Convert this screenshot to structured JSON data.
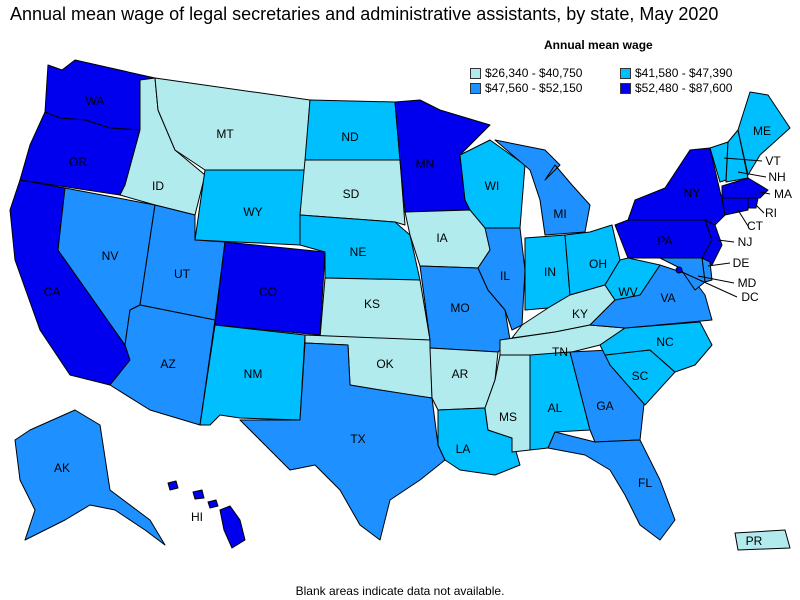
{
  "title": "Annual mean wage of legal secretaries and administrative assistants, by state, May 2020",
  "legend": {
    "title": "Annual mean wage",
    "items": [
      {
        "label": "$26,340 - $40,750",
        "color": "#b2ebee"
      },
      {
        "label": "$41,580 - $47,390",
        "color": "#00bfff"
      },
      {
        "label": "$47,560 - $52,150",
        "color": "#1e90ff"
      },
      {
        "label": "$52,480 - $87,600",
        "color": "#0000ee"
      }
    ]
  },
  "footnote": "Blank areas indicate data not available.",
  "states": [
    {
      "code": "WA",
      "label": "WA",
      "tier": 3
    },
    {
      "code": "OR",
      "label": "OR",
      "tier": 3
    },
    {
      "code": "CA",
      "label": "CA",
      "tier": 3
    },
    {
      "code": "NV",
      "label": "NV",
      "tier": 2
    },
    {
      "code": "ID",
      "label": "ID",
      "tier": 0
    },
    {
      "code": "MT",
      "label": "MT",
      "tier": 0
    },
    {
      "code": "WY",
      "label": "WY",
      "tier": 1
    },
    {
      "code": "UT",
      "label": "UT",
      "tier": 2
    },
    {
      "code": "AZ",
      "label": "AZ",
      "tier": 2
    },
    {
      "code": "CO",
      "label": "CO",
      "tier": 3
    },
    {
      "code": "NM",
      "label": "NM",
      "tier": 1
    },
    {
      "code": "ND",
      "label": "ND",
      "tier": 1
    },
    {
      "code": "SD",
      "label": "SD",
      "tier": 0
    },
    {
      "code": "NE",
      "label": "NE",
      "tier": 1
    },
    {
      "code": "KS",
      "label": "KS",
      "tier": 0
    },
    {
      "code": "OK",
      "label": "OK",
      "tier": 0
    },
    {
      "code": "TX",
      "label": "TX",
      "tier": 2
    },
    {
      "code": "MN",
      "label": "MN",
      "tier": 3
    },
    {
      "code": "IA",
      "label": "IA",
      "tier": 0
    },
    {
      "code": "MO",
      "label": "MO",
      "tier": 2
    },
    {
      "code": "AR",
      "label": "AR",
      "tier": 0
    },
    {
      "code": "LA",
      "label": "LA",
      "tier": 1
    },
    {
      "code": "WI",
      "label": "WI",
      "tier": 1
    },
    {
      "code": "IL",
      "label": "IL",
      "tier": 2
    },
    {
      "code": "MS",
      "label": "MS",
      "tier": 0
    },
    {
      "code": "MI",
      "label": "MI",
      "tier": 2
    },
    {
      "code": "IN",
      "label": "IN",
      "tier": 1
    },
    {
      "code": "OH",
      "label": "OH",
      "tier": 1
    },
    {
      "code": "KY",
      "label": "KY",
      "tier": 0
    },
    {
      "code": "TN",
      "label": "TN",
      "tier": 0
    },
    {
      "code": "AL",
      "label": "AL",
      "tier": 1
    },
    {
      "code": "GA",
      "label": "GA",
      "tier": 2
    },
    {
      "code": "FL",
      "label": "FL",
      "tier": 2
    },
    {
      "code": "SC",
      "label": "SC",
      "tier": 1
    },
    {
      "code": "NC",
      "label": "NC",
      "tier": 1
    },
    {
      "code": "VA",
      "label": "VA",
      "tier": 2
    },
    {
      "code": "WV",
      "label": "WV",
      "tier": 1
    },
    {
      "code": "PA",
      "label": "PA",
      "tier": 3
    },
    {
      "code": "NY",
      "label": "NY",
      "tier": 3
    },
    {
      "code": "VT",
      "label": "VT",
      "tier": 1
    },
    {
      "code": "NH",
      "label": "NH",
      "tier": 1
    },
    {
      "code": "ME",
      "label": "ME",
      "tier": 1
    },
    {
      "code": "MA",
      "label": "MA",
      "tier": 3
    },
    {
      "code": "RI",
      "label": "RI",
      "tier": 3
    },
    {
      "code": "CT",
      "label": "CT",
      "tier": 3
    },
    {
      "code": "NJ",
      "label": "NJ",
      "tier": 3
    },
    {
      "code": "DE",
      "label": "DE",
      "tier": 2
    },
    {
      "code": "MD",
      "label": "MD",
      "tier": 2
    },
    {
      "code": "DC",
      "label": "DC",
      "tier": 3
    },
    {
      "code": "AK",
      "label": "AK",
      "tier": 2
    },
    {
      "code": "HI",
      "label": "HI",
      "tier": 3
    },
    {
      "code": "PR",
      "label": "PR",
      "tier": 0
    }
  ]
}
